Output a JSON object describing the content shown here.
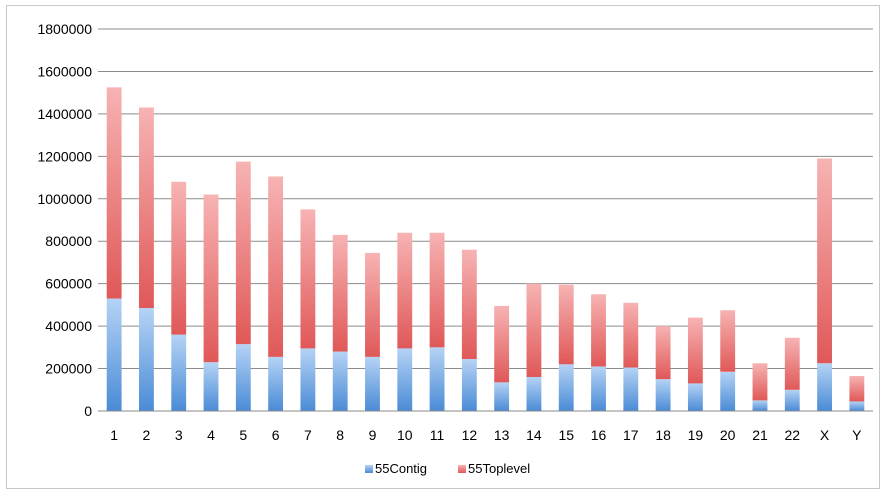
{
  "chart_data": {
    "type": "bar",
    "stacked": true,
    "title": "",
    "xlabel": "",
    "ylabel": "",
    "ylim": [
      0,
      1800000
    ],
    "yticks": [
      "0",
      "200000",
      "400000",
      "600000",
      "800000",
      "1000000",
      "1200000",
      "1400000",
      "1600000",
      "1800000"
    ],
    "grid": true,
    "legend_position": "bottom",
    "categories": [
      "1",
      "2",
      "3",
      "4",
      "5",
      "6",
      "7",
      "8",
      "9",
      "10",
      "11",
      "12",
      "13",
      "14",
      "15",
      "16",
      "17",
      "18",
      "19",
      "20",
      "21",
      "22",
      "X",
      "Y"
    ],
    "series": [
      {
        "name": "55Contig",
        "color": "#5b9bd5",
        "values": [
          530000,
          485000,
          360000,
          230000,
          315000,
          255000,
          295000,
          280000,
          255000,
          295000,
          300000,
          245000,
          135000,
          160000,
          220000,
          210000,
          205000,
          150000,
          130000,
          185000,
          50000,
          100000,
          225000,
          45000
        ]
      },
      {
        "name": "55Toplevel",
        "color": "#e06666",
        "values": [
          995000,
          945000,
          720000,
          790000,
          860000,
          850000,
          655000,
          550000,
          490000,
          545000,
          540000,
          515000,
          360000,
          440000,
          375000,
          340000,
          305000,
          250000,
          310000,
          290000,
          175000,
          245000,
          965000,
          120000
        ]
      }
    ]
  }
}
